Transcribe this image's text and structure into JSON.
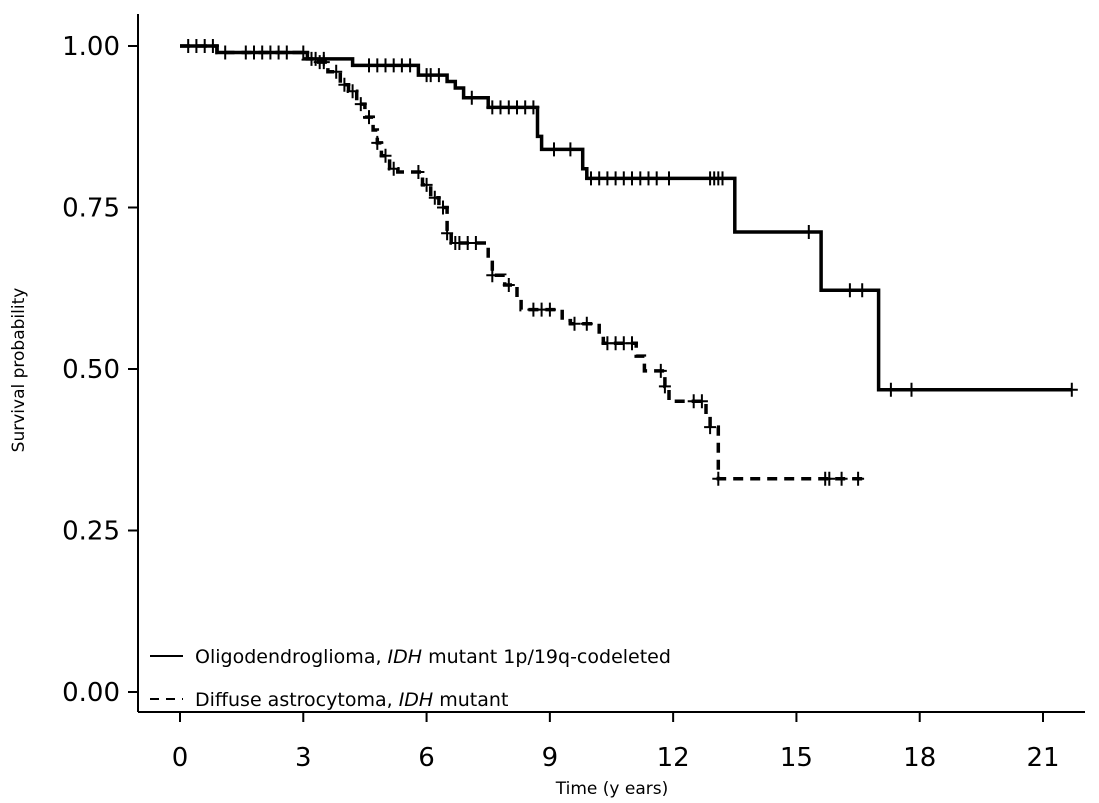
{
  "chart_data": {
    "type": "line",
    "subtype": "kaplan-meier step",
    "title": "",
    "xlabel": "Time (y ears)",
    "ylabel": "Survival probability",
    "xlim": [
      0,
      22
    ],
    "ylim": [
      0,
      1
    ],
    "x_ticks": [
      0,
      3,
      6,
      9,
      12,
      15,
      18,
      21
    ],
    "x_tick_labels": [
      "0",
      "3",
      "6",
      "9",
      "12",
      "15",
      "18",
      "21"
    ],
    "y_ticks": [
      0,
      0.25,
      0.5,
      0.75,
      1
    ],
    "y_tick_labels": [
      "0.00",
      "0.25",
      "0.50",
      "0.75",
      "1.00"
    ],
    "grid": false,
    "legend_position": "bottom-left",
    "series": [
      {
        "name": "Oligodendroglioma, IDH mutant 1p/19q-codeleted",
        "legend_parts": [
          "Oligodendroglioma, ",
          "IDH",
          " mutant 1p/19q-codeleted"
        ],
        "line_style": "solid",
        "color": "#000000",
        "steps": [
          [
            0,
            1.0
          ],
          [
            0.9,
            0.99
          ],
          [
            3.1,
            0.98
          ],
          [
            4.2,
            0.97
          ],
          [
            5.8,
            0.955
          ],
          [
            6.5,
            0.945
          ],
          [
            6.7,
            0.935
          ],
          [
            6.9,
            0.92
          ],
          [
            7.5,
            0.905
          ],
          [
            8.7,
            0.86
          ],
          [
            8.8,
            0.84
          ],
          [
            9.8,
            0.81
          ],
          [
            9.9,
            0.795
          ],
          [
            13.5,
            0.795
          ],
          [
            13.5,
            0.712
          ],
          [
            15.6,
            0.712
          ],
          [
            15.6,
            0.622
          ],
          [
            17.0,
            0.622
          ],
          [
            17.0,
            0.468
          ],
          [
            21.7,
            0.468
          ]
        ],
        "censor_times": [
          0.2,
          0.4,
          0.6,
          0.8,
          1.1,
          1.6,
          1.8,
          2.0,
          2.2,
          2.4,
          2.6,
          3.0,
          3.3,
          3.5,
          4.6,
          4.8,
          5.0,
          5.2,
          5.4,
          5.6,
          6.0,
          6.1,
          6.3,
          7.1,
          7.6,
          7.8,
          8.0,
          8.2,
          8.4,
          8.6,
          9.1,
          9.5,
          10.0,
          10.2,
          10.4,
          10.6,
          10.8,
          11.0,
          11.2,
          11.4,
          11.6,
          11.9,
          12.9,
          13.0,
          13.1,
          13.2,
          15.3,
          16.3,
          16.6,
          17.3,
          17.8,
          21.7
        ]
      },
      {
        "name": "Diffuse astrocytoma, IDH mutant",
        "legend_parts": [
          "Diffuse astrocytoma, ",
          "IDH",
          " mutant"
        ],
        "line_style": "dashed",
        "color": "#000000",
        "steps": [
          [
            0,
            1.0
          ],
          [
            0.9,
            0.99
          ],
          [
            3.0,
            0.98
          ],
          [
            3.3,
            0.975
          ],
          [
            3.6,
            0.96
          ],
          [
            3.9,
            0.94
          ],
          [
            4.1,
            0.93
          ],
          [
            4.3,
            0.91
          ],
          [
            4.5,
            0.89
          ],
          [
            4.7,
            0.87
          ],
          [
            4.8,
            0.85
          ],
          [
            4.9,
            0.83
          ],
          [
            5.1,
            0.81
          ],
          [
            5.3,
            0.805
          ],
          [
            5.9,
            0.785
          ],
          [
            6.1,
            0.765
          ],
          [
            6.3,
            0.75
          ],
          [
            6.5,
            0.71
          ],
          [
            6.6,
            0.695
          ],
          [
            7.5,
            0.665
          ],
          [
            7.6,
            0.645
          ],
          [
            7.9,
            0.63
          ],
          [
            8.2,
            0.61
          ],
          [
            8.3,
            0.592
          ],
          [
            9.3,
            0.575
          ],
          [
            9.5,
            0.57
          ],
          [
            10.2,
            0.55
          ],
          [
            10.3,
            0.54
          ],
          [
            11.1,
            0.52
          ],
          [
            11.3,
            0.497
          ],
          [
            11.8,
            0.473
          ],
          [
            11.9,
            0.45
          ],
          [
            12.8,
            0.43
          ],
          [
            12.9,
            0.41
          ],
          [
            13.1,
            0.36
          ],
          [
            13.1,
            0.33
          ],
          [
            16.6,
            0.33
          ]
        ],
        "censor_times": [
          3.2,
          3.4,
          3.5,
          3.8,
          4.0,
          4.2,
          4.4,
          4.6,
          4.8,
          5.0,
          5.2,
          5.8,
          6.0,
          6.2,
          6.4,
          6.5,
          6.7,
          6.8,
          7.0,
          7.2,
          7.6,
          8.0,
          8.6,
          8.8,
          9.0,
          9.6,
          9.9,
          10.4,
          10.6,
          10.8,
          11.0,
          11.7,
          11.8,
          12.5,
          12.7,
          12.9,
          13.1,
          15.7,
          15.8,
          16.1,
          16.5
        ]
      }
    ]
  }
}
